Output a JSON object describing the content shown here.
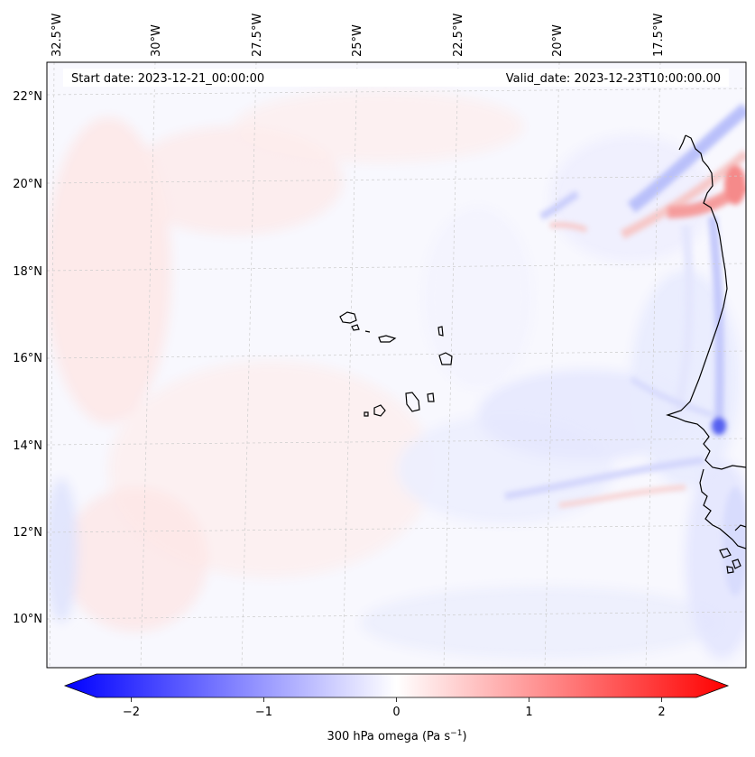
{
  "header": {
    "start_date": "Start date: 2023-12-21_00:00:00",
    "valid_date": "Valid_date: 2023-12-23T10:00:00.00"
  },
  "axes": {
    "longitude_labels": [
      "32.5°W",
      "30°W",
      "27.5°W",
      "25°W",
      "22.5°W",
      "20°W",
      "17.5°W"
    ],
    "latitude_labels": [
      "22°N",
      "20°N",
      "18°N",
      "16°N",
      "14°N",
      "12°N",
      "10°N"
    ]
  },
  "colorbar": {
    "tick_labels": [
      "−2",
      "−1",
      "0",
      "1",
      "2"
    ],
    "ticks": [
      -2,
      -1,
      0,
      1,
      2
    ],
    "range": [
      -2.5,
      2.5
    ],
    "label_main": "300 hPa omega (Pa s",
    "label_sup": "−1",
    "label_end": ")",
    "color_min": "#0000ff",
    "color_mid": "#ffffff",
    "color_max": "#ff0000"
  },
  "map": {
    "field": "300 hPa omega",
    "ocean_color": "#f7f8ff",
    "coastline_color": "#000000",
    "features": [
      "cape-verde-islands",
      "west-africa-coastline"
    ]
  }
}
